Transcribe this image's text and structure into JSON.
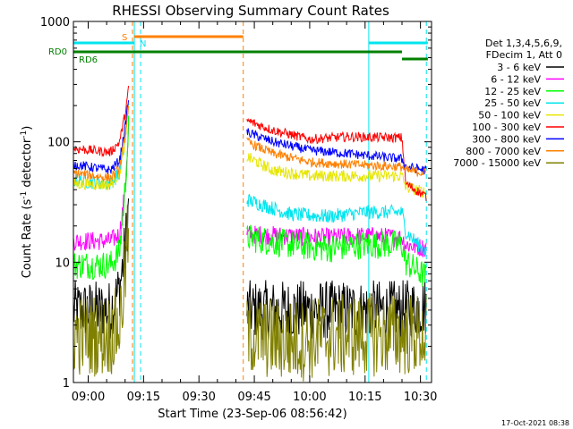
{
  "chart_data": {
    "type": "line",
    "title": "RHESSI Observing Summary Count Rates",
    "xlabel": "Start Time (23-Sep-06 08:56:42)",
    "ylabel_main": "Count Rate (s",
    "ylabel_sup1": "-1",
    "ylabel_mid": " detector",
    "ylabel_sup2": "-1",
    "ylabel_end": ")",
    "y_scale": "log",
    "ylim": [
      1,
      1000
    ],
    "xlim_minutes": [
      -4,
      93
    ],
    "x_tick_labels": [
      "09:00",
      "09:15",
      "09:30",
      "09:45",
      "10:00",
      "10:15",
      "10:30"
    ],
    "x_tick_minutes": [
      0,
      15,
      30,
      45,
      60,
      75,
      90
    ],
    "y_tick_labels": [
      "1",
      "10",
      "100",
      "1000"
    ],
    "y_tick_values": [
      1,
      10,
      100,
      1000
    ],
    "legend_header": [
      "Det 1,3,4,5,6,9,",
      "FDecim 1, Att 0"
    ],
    "footer_date": "17-Oct-2021 08:38",
    "state_flags": [
      {
        "label": "S",
        "color": "#ff8000",
        "segments": [
          [
            12.5,
            42
          ]
        ]
      },
      {
        "label": "N",
        "color": "#00e5ee",
        "segments": [
          [
            -4,
            12.5
          ],
          [
            76,
            92
          ]
        ]
      },
      {
        "label": "RD0",
        "color": "#008000",
        "segments": [
          [
            -4,
            85
          ]
        ]
      },
      {
        "label": "RD6",
        "color": "#008000",
        "segments": [
          [
            85,
            92
          ]
        ]
      }
    ],
    "vlines": [
      {
        "minute": -4,
        "color": "#00e5ee",
        "style": "solid"
      },
      {
        "minute": 12.5,
        "color": "#00e5ee",
        "style": "solid"
      },
      {
        "minute": 14.2,
        "color": "#00e5ee",
        "style": "dashed"
      },
      {
        "minute": 12,
        "color": "#ff8000",
        "style": "dashed"
      },
      {
        "minute": 42,
        "color": "#ff8000",
        "style": "dashed"
      },
      {
        "minute": 76,
        "color": "#00e5ee",
        "style": "solid"
      },
      {
        "minute": 91.6,
        "color": "#00e5ee",
        "style": "dashed"
      }
    ],
    "series": [
      {
        "name": "3 - 6 keV",
        "color": "#000000",
        "noise": 0.25,
        "segments": [
          [
            [
              -4,
              4
            ],
            [
              6,
              4
            ],
            [
              8.5,
              6
            ],
            [
              10,
              13
            ],
            [
              11,
              30
            ]
          ],
          [
            [
              43,
              4
            ],
            [
              55,
              4
            ],
            [
              65,
              4
            ],
            [
              75,
              4
            ],
            [
              85,
              4
            ],
            [
              91.6,
              4.3
            ]
          ]
        ]
      },
      {
        "name": "6 - 12 keV",
        "color": "#ff00ff",
        "noise": 0.08,
        "segments": [
          [
            [
              -4,
              15
            ],
            [
              6,
              15
            ],
            [
              8.5,
              17
            ],
            [
              10,
              40
            ],
            [
              11,
              140
            ]
          ],
          [
            [
              43,
              17
            ],
            [
              55,
              16.5
            ],
            [
              65,
              16
            ],
            [
              75,
              16.5
            ],
            [
              85,
              16
            ],
            [
              86,
              14
            ],
            [
              91.6,
              13
            ]
          ]
        ]
      },
      {
        "name": "12 - 25 keV",
        "color": "#00ff00",
        "noise": 0.12,
        "segments": [
          [
            [
              -4,
              9.5
            ],
            [
              6,
              9.5
            ],
            [
              8.5,
              12
            ],
            [
              10,
              40
            ],
            [
              11,
              140
            ]
          ],
          [
            [
              43,
              16
            ],
            [
              55,
              14
            ],
            [
              65,
              13
            ],
            [
              75,
              14
            ],
            [
              85,
              14
            ],
            [
              86,
              10
            ],
            [
              91.6,
              7.5
            ]
          ]
        ]
      },
      {
        "name": "25 - 50 keV",
        "color": "#00e5ee",
        "noise": 0.06,
        "segments": [
          [
            [
              -4,
              48
            ],
            [
              6,
              45
            ],
            [
              8.5,
              55
            ],
            [
              10,
              100
            ],
            [
              11,
              220
            ]
          ],
          [
            [
              43,
              33
            ],
            [
              55,
              25
            ],
            [
              65,
              24
            ],
            [
              75,
              26
            ],
            [
              85,
              26
            ],
            [
              86,
              18
            ],
            [
              91.6,
              12
            ]
          ]
        ]
      },
      {
        "name": "50 - 100 keV",
        "color": "#e6e600",
        "noise": 0.05,
        "segments": [
          [
            [
              -4,
              45
            ],
            [
              6,
              44
            ],
            [
              8.5,
              55
            ],
            [
              10,
              100
            ],
            [
              11,
              200
            ]
          ],
          [
            [
              43,
              75
            ],
            [
              50,
              58
            ],
            [
              60,
              52
            ],
            [
              70,
              52
            ],
            [
              85,
              52
            ],
            [
              86,
              42
            ],
            [
              91.6,
              38
            ]
          ]
        ]
      },
      {
        "name": "100 - 300 keV",
        "color": "#ff0000",
        "noise": 0.04,
        "segments": [
          [
            [
              -4,
              88
            ],
            [
              6,
              82
            ],
            [
              8.5,
              100
            ],
            [
              10,
              170
            ],
            [
              11,
              280
            ]
          ],
          [
            [
              43,
              150
            ],
            [
              50,
              125
            ],
            [
              60,
              105
            ],
            [
              70,
              110
            ],
            [
              85,
              108
            ],
            [
              86,
              45
            ],
            [
              91.6,
              35
            ]
          ]
        ]
      },
      {
        "name": "300 - 800 keV",
        "color": "#0000ff",
        "noise": 0.04,
        "segments": [
          [
            [
              -4,
              65
            ],
            [
              6,
              58
            ],
            [
              8.5,
              70
            ],
            [
              10,
              130
            ],
            [
              11,
              240
            ]
          ],
          [
            [
              43,
              120
            ],
            [
              50,
              100
            ],
            [
              60,
              85
            ],
            [
              70,
              80
            ],
            [
              85,
              72
            ],
            [
              86,
              62
            ],
            [
              91.6,
              58
            ]
          ]
        ]
      },
      {
        "name": "800 - 7000 keV",
        "color": "#ff8000",
        "noise": 0.04,
        "segments": [
          [
            [
              -4,
              55
            ],
            [
              6,
              50
            ],
            [
              8.5,
              60
            ],
            [
              10,
              110
            ],
            [
              11,
              210
            ]
          ],
          [
            [
              43,
              100
            ],
            [
              50,
              80
            ],
            [
              60,
              68
            ],
            [
              70,
              65
            ],
            [
              85,
              62
            ],
            [
              86,
              58
            ],
            [
              91.6,
              55
            ]
          ]
        ]
      },
      {
        "name": "7000 - 15000 keV",
        "color": "#808000",
        "noise": 0.35,
        "segments": [
          [
            [
              -4,
              2.5
            ],
            [
              6,
              2.5
            ],
            [
              8.5,
              3
            ],
            [
              10,
              8
            ],
            [
              11,
              20
            ]
          ],
          [
            [
              43,
              2.5
            ],
            [
              55,
              2.2
            ],
            [
              65,
              2.4
            ],
            [
              75,
              2.5
            ],
            [
              85,
              2.5
            ],
            [
              91.6,
              2.5
            ]
          ]
        ]
      }
    ]
  }
}
